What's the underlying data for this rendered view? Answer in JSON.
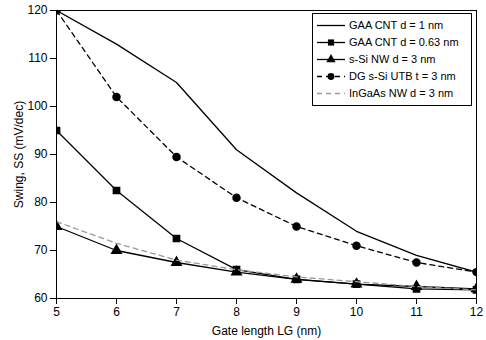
{
  "chart_data": {
    "type": "line",
    "x_label": "Gate length LG (nm)",
    "y_label": "Swing, SS (mV/dec)",
    "x": [
      5,
      6,
      7,
      8,
      9,
      10,
      11,
      12
    ],
    "xlim": [
      5,
      12
    ],
    "xticks": [
      5,
      6,
      7,
      8,
      9,
      10,
      11,
      12
    ],
    "ylim": [
      60,
      120
    ],
    "yticks": [
      60,
      70,
      80,
      90,
      100,
      110,
      120
    ],
    "grid": false,
    "legend": "upper right",
    "series": [
      {
        "name": "GAA CNT d = 1 nm",
        "color": "#000000",
        "marker": "none",
        "line_style": "solid",
        "values": [
          120,
          113,
          105,
          91,
          82,
          74,
          69,
          65.5
        ]
      },
      {
        "name": "GAA CNT d = 0.63 nm",
        "color": "#000000",
        "marker": "square",
        "line_style": "solid",
        "values": [
          95,
          82.5,
          72.5,
          66,
          64,
          63,
          62,
          61.8
        ]
      },
      {
        "name": "s-Si NW d = 3 nm",
        "color": "#000000",
        "marker": "triangle",
        "line_style": "solid",
        "values": [
          75,
          70,
          67.5,
          65.5,
          64,
          63,
          62.5,
          62
        ]
      },
      {
        "name": "DG s-Si UTB t = 3 nm",
        "color": "#000000",
        "marker": "circle",
        "line_style": "dashed",
        "values": [
          120,
          102,
          89.5,
          81,
          75,
          71,
          67.5,
          65.5
        ]
      },
      {
        "name": "InGaAs NW d = 3 nm",
        "color": "#999999",
        "marker": "none",
        "line_style": "dashed",
        "values": [
          76,
          71.5,
          68,
          66,
          64.5,
          63.5,
          62.5,
          61.8
        ]
      }
    ]
  }
}
